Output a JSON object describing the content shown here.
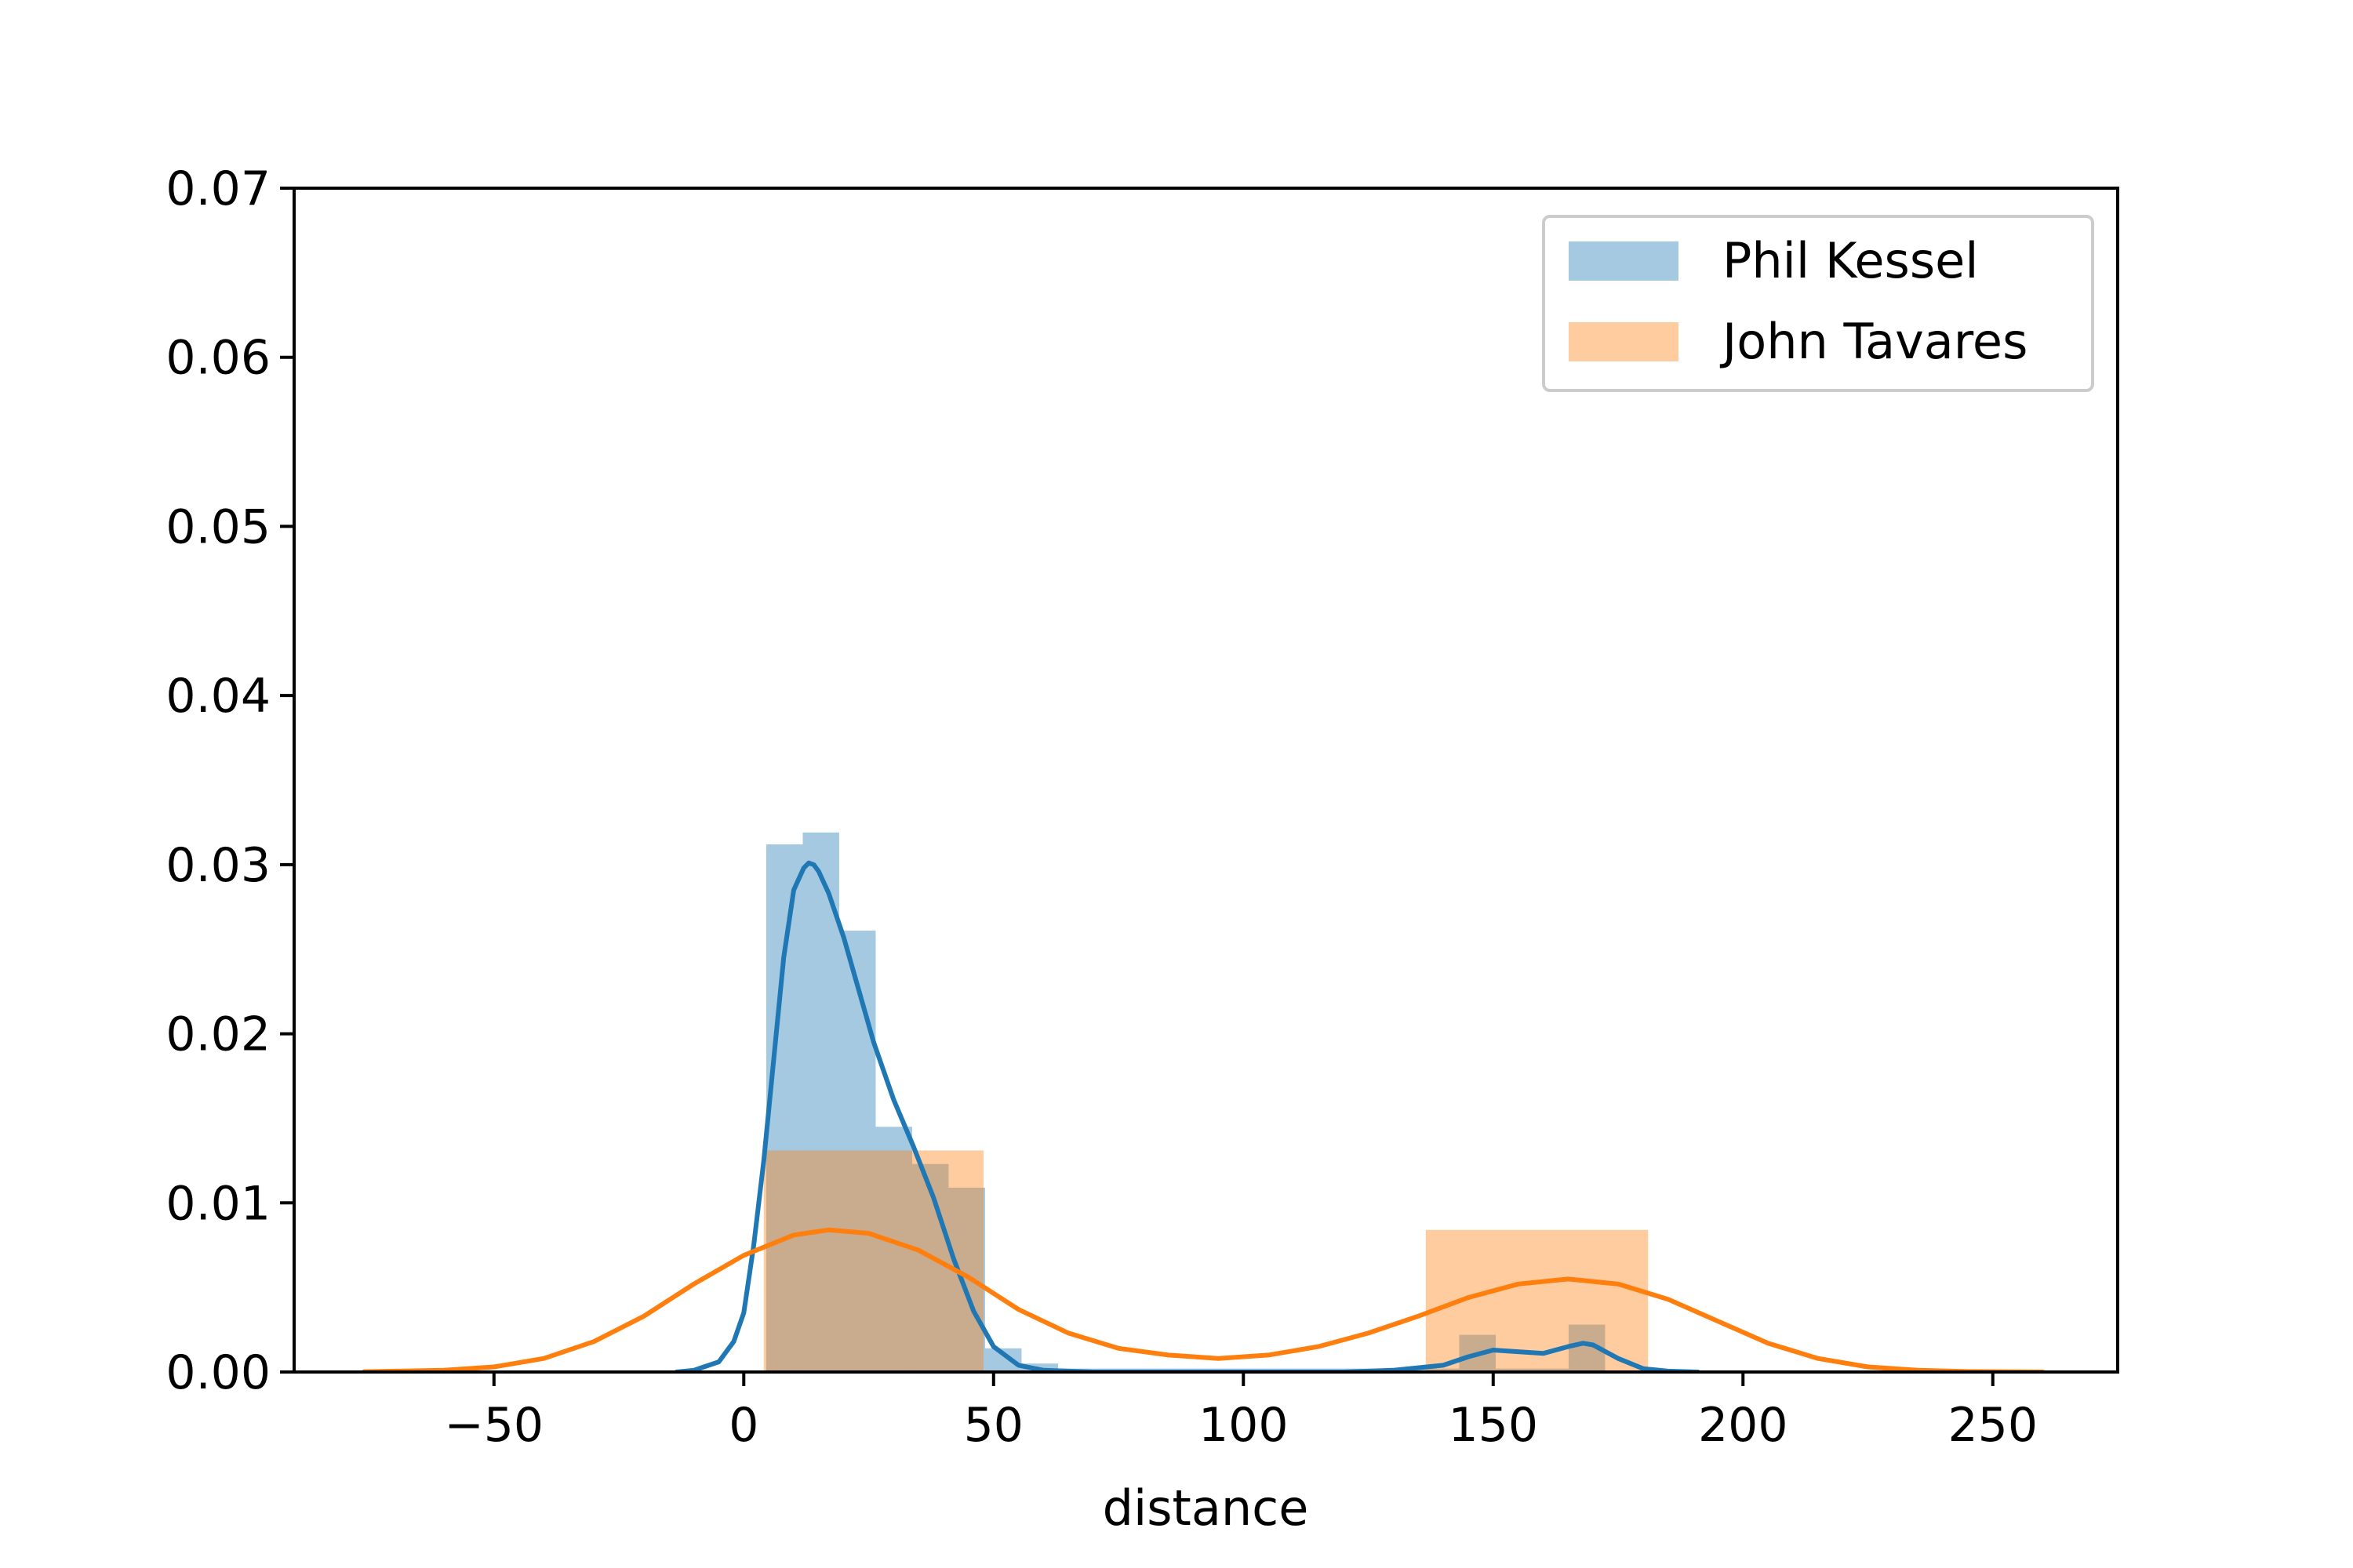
{
  "chart_data": {
    "type": "bar",
    "title": "",
    "xlabel": "distance",
    "ylabel": "",
    "xlim": [
      -90,
      275
    ],
    "ylim": [
      0,
      0.07
    ],
    "x_ticks": [
      -50,
      0,
      50,
      100,
      150,
      200,
      250
    ],
    "x_tick_labels": [
      "−50",
      "0",
      "50",
      "100",
      "150",
      "200",
      "250"
    ],
    "y_ticks": [
      0,
      0.01,
      0.02,
      0.03,
      0.04,
      0.05,
      0.06,
      0.07
    ],
    "y_tick_labels": [
      "0.00",
      "0.01",
      "0.02",
      "0.03",
      "0.04",
      "0.05",
      "0.06",
      "0.07"
    ],
    "grid": false,
    "legend_position": "top-right",
    "series": [
      {
        "name": "Phil Kessel",
        "color": "#1f77b4",
        "histogram": [
          {
            "x0": 4.5,
            "x1": 11.8,
            "density": 0.0312
          },
          {
            "x0": 11.8,
            "x1": 19.1,
            "density": 0.0319
          },
          {
            "x0": 19.1,
            "x1": 26.4,
            "density": 0.0261
          },
          {
            "x0": 26.4,
            "x1": 33.7,
            "density": 0.0145
          },
          {
            "x0": 33.7,
            "x1": 41.0,
            "density": 0.0123
          },
          {
            "x0": 41.0,
            "x1": 48.3,
            "density": 0.0109
          },
          {
            "x0": 48.3,
            "x1": 55.6,
            "density": 0.0014
          },
          {
            "x0": 55.6,
            "x1": 62.9,
            "density": 0.0005
          },
          {
            "x0": 62.9,
            "x1": 70.2,
            "density": 0.0002
          },
          {
            "x0": 70.2,
            "x1": 77.5,
            "density": 0.0002
          },
          {
            "x0": 77.5,
            "x1": 84.8,
            "density": 0.0002
          },
          {
            "x0": 84.8,
            "x1": 92.1,
            "density": 0.0002
          },
          {
            "x0": 92.1,
            "x1": 99.4,
            "density": 0.0002
          },
          {
            "x0": 99.4,
            "x1": 106.7,
            "density": 0.0002
          },
          {
            "x0": 106.7,
            "x1": 114.0,
            "density": 0.0002
          },
          {
            "x0": 114.0,
            "x1": 121.3,
            "density": 0.0002
          },
          {
            "x0": 121.3,
            "x1": 128.6,
            "density": 0.0002
          },
          {
            "x0": 128.6,
            "x1": 135.9,
            "density": 0.0002
          },
          {
            "x0": 135.9,
            "x1": 143.2,
            "density": 0.0002
          },
          {
            "x0": 143.2,
            "x1": 150.5,
            "density": 0.0022
          },
          {
            "x0": 150.5,
            "x1": 157.8,
            "density": 0.0002
          },
          {
            "x0": 157.8,
            "x1": 165.1,
            "density": 0.0002
          },
          {
            "x0": 165.1,
            "x1": 172.4,
            "density": 0.0028
          }
        ],
        "kde": {
          "x": [
            -13.5,
            -10,
            -5,
            -2,
            0,
            2,
            4,
            6,
            8,
            10,
            12,
            13,
            14,
            15,
            17,
            20,
            23,
            26,
            30,
            34,
            38,
            42,
            46,
            50,
            55,
            60,
            65,
            70,
            80,
            100,
            120,
            130,
            140,
            145,
            150,
            155,
            160,
            165,
            168,
            170,
            175,
            180,
            185,
            191
          ],
          "y": [
            0.0,
            0.0001,
            0.0006,
            0.0018,
            0.0035,
            0.0075,
            0.0125,
            0.0185,
            0.0245,
            0.0285,
            0.0298,
            0.0301,
            0.03,
            0.0296,
            0.0283,
            0.0257,
            0.0226,
            0.0195,
            0.0161,
            0.0133,
            0.0103,
            0.0067,
            0.0036,
            0.0015,
            0.0004,
            0.0001,
            5e-05,
            0.0,
            0.0,
            0.0,
            0.0,
            0.0001,
            0.0004,
            0.0009,
            0.0013,
            0.0012,
            0.0011,
            0.0015,
            0.0017,
            0.0016,
            0.0008,
            0.0002,
            5e-05,
            0.0
          ]
        }
      },
      {
        "name": "John Tavares",
        "color": "#ff7f0e",
        "histogram": [
          {
            "x0": 4.0,
            "x1": 48.0,
            "density": 0.0131
          },
          {
            "x0": 48.0,
            "x1": 92.0,
            "density": 0.0001
          },
          {
            "x0": 92.0,
            "x1": 136.5,
            "density": 0.0001
          },
          {
            "x0": 136.5,
            "x1": 181.0,
            "density": 0.0084
          }
        ],
        "kde": {
          "x": [
            -76,
            -60,
            -50,
            -40,
            -30,
            -20,
            -10,
            0,
            10,
            17,
            25,
            35,
            45,
            55,
            65,
            75,
            85,
            95,
            105,
            115,
            125,
            135,
            145,
            155,
            165,
            175,
            185,
            195,
            205,
            215,
            225,
            235,
            245,
            260
          ],
          "y": [
            2e-05,
            0.0001,
            0.0003,
            0.0008,
            0.0018,
            0.0033,
            0.0052,
            0.0069,
            0.0081,
            0.0084,
            0.0082,
            0.0072,
            0.0056,
            0.0037,
            0.0023,
            0.0014,
            0.001,
            0.0008,
            0.001,
            0.0015,
            0.0023,
            0.0033,
            0.0044,
            0.0052,
            0.0055,
            0.0052,
            0.0043,
            0.003,
            0.0017,
            0.0008,
            0.0003,
            0.0001,
            3e-05,
            0.0
          ]
        }
      }
    ]
  }
}
